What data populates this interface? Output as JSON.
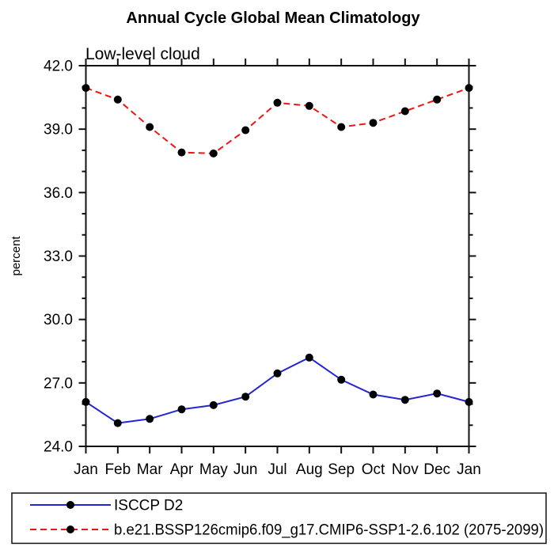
{
  "chart_data": {
    "type": "line",
    "title": "Annual Cycle Global Mean Climatology",
    "subtitle": "Low-level cloud",
    "xlabel": "",
    "ylabel": "percent",
    "categories": [
      "Jan",
      "Feb",
      "Mar",
      "Apr",
      "May",
      "Jun",
      "Jul",
      "Aug",
      "Sep",
      "Oct",
      "Nov",
      "Dec",
      "Jan"
    ],
    "ylim": [
      24,
      42
    ],
    "yticks": [
      24,
      27,
      30,
      33,
      36,
      39,
      42
    ],
    "ytick_labels": [
      "24.0",
      "27.0",
      "30.0",
      "33.0",
      "36.0",
      "39.0",
      "42.0"
    ],
    "minor_tick_step": 1,
    "grid": false,
    "legend_position": "bottom-left",
    "axis_color": "#111111",
    "marker_color": "#000000",
    "series": [
      {
        "name": "ISCCP D2",
        "color": "#2424d6",
        "line_style": "solid",
        "marker": "filled-circle",
        "values": [
          26.1,
          25.1,
          25.3,
          25.75,
          25.95,
          26.35,
          27.45,
          28.2,
          27.15,
          26.45,
          26.2,
          26.5,
          26.1
        ]
      },
      {
        "name": "b.e21.BSSP126cmip6.f09_g17.CMIP6-SSP1-2.6.102 (2075-2099)",
        "color": "#f01414",
        "line_style": "dashed",
        "marker": "filled-circle",
        "values": [
          40.95,
          40.4,
          39.1,
          37.9,
          37.85,
          38.95,
          40.25,
          40.1,
          39.1,
          39.3,
          39.85,
          40.4,
          40.95
        ]
      }
    ]
  }
}
